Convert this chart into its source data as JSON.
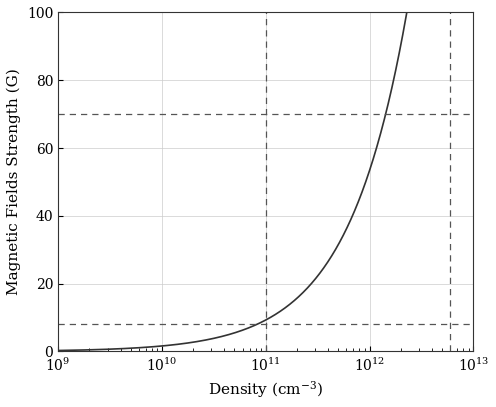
{
  "xlabel": "Density (cm$^{-3}$)",
  "ylabel": "Magnetic Fields Strength (G)",
  "xlim_log": [
    9,
    13
  ],
  "ylim": [
    0,
    100
  ],
  "yticks": [
    0,
    20,
    40,
    60,
    80,
    100
  ],
  "hline_values": [
    8.0,
    70.0
  ],
  "vline_values": [
    100000000000.0,
    6000000000000.0
  ],
  "B0": 0.28,
  "n0": 1000000000.0,
  "power": 0.76,
  "line_color": "#333333",
  "dashed_color": "#555555",
  "background_color": "#ffffff",
  "figsize": [
    4.96,
    4.07
  ],
  "dpi": 100
}
